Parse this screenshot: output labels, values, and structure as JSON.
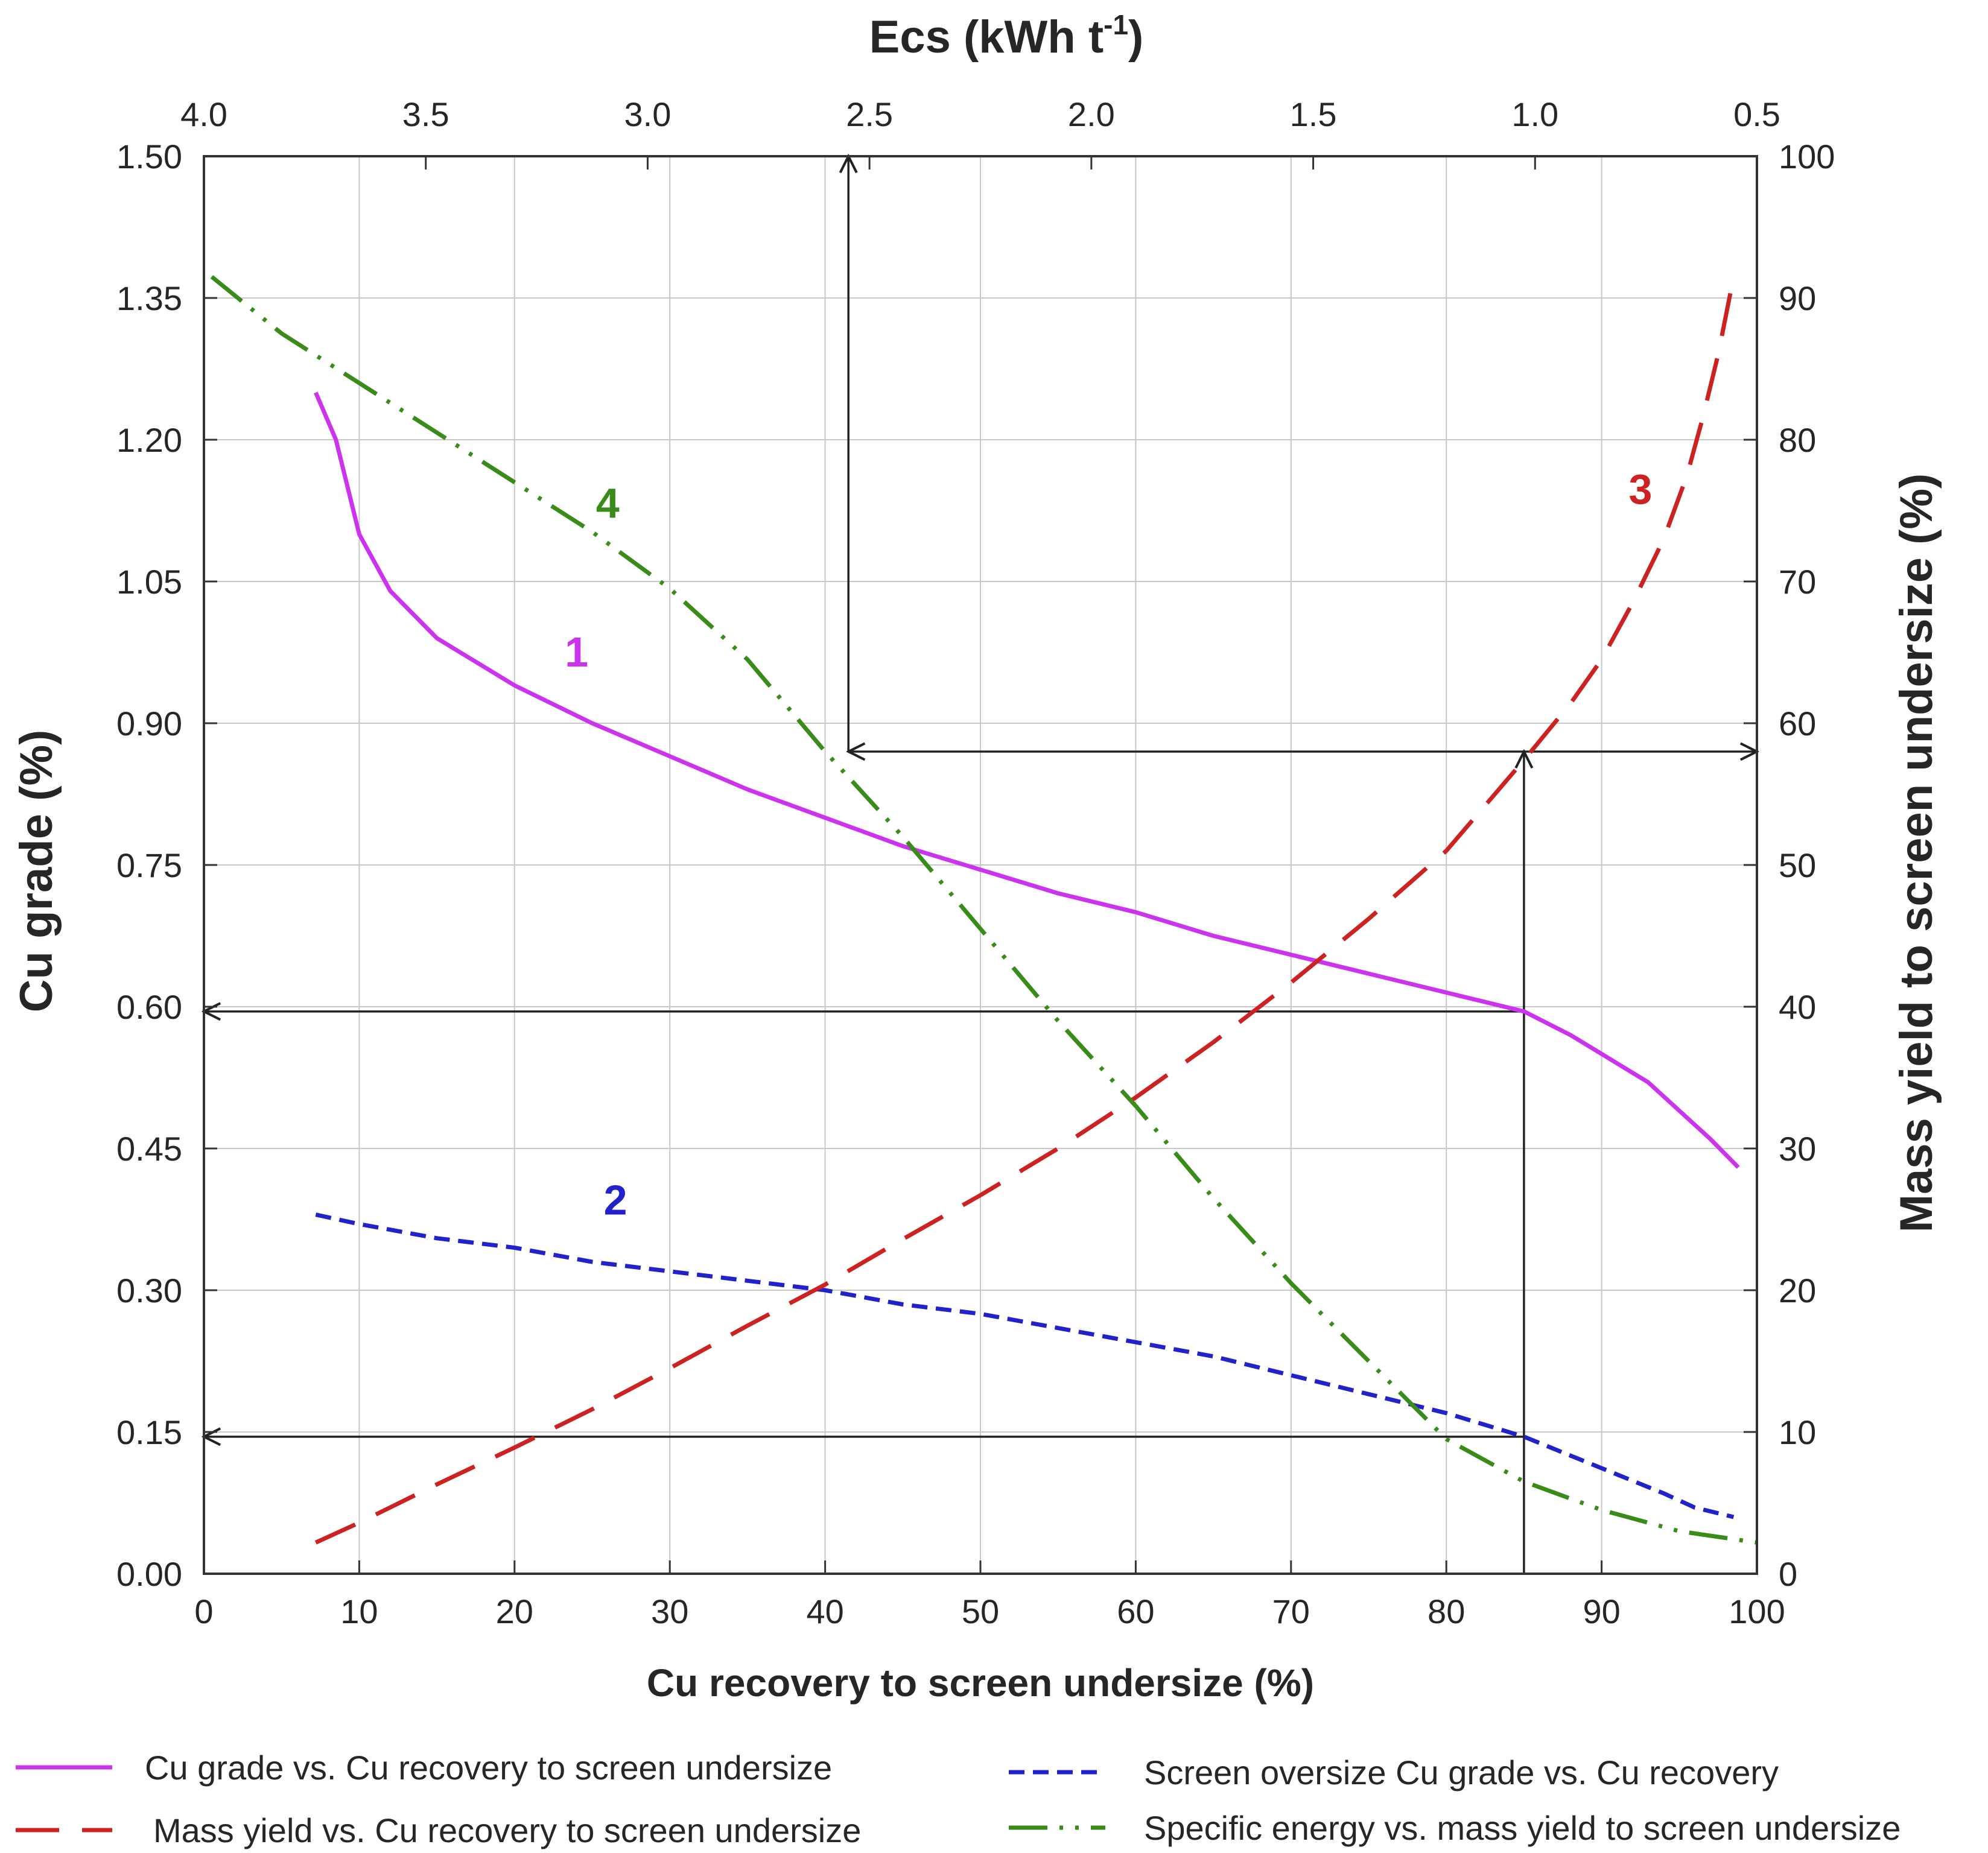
{
  "chart_data": {
    "type": "line",
    "title": "",
    "xlabel": "Cu recovery to screen undersize (%)",
    "xlim": [
      0,
      100
    ],
    "xticks": [
      0,
      10,
      20,
      30,
      40,
      50,
      60,
      70,
      80,
      90,
      100
    ],
    "ylabel_left": "Cu grade (%)",
    "ylim_left": [
      0,
      1.5
    ],
    "yticks_left": [
      "0.00",
      "0.15",
      "0.30",
      "0.45",
      "0.60",
      "0.75",
      "0.90",
      "1.05",
      "1.20",
      "1.35",
      "1.50"
    ],
    "ylabel_right": "Mass yield to screen undersize (%)",
    "ylim_right": [
      0,
      100
    ],
    "yticks_right": [
      0,
      10,
      20,
      30,
      40,
      50,
      60,
      70,
      80,
      90,
      100
    ],
    "x2label_main": "Ecs (kWh t",
    "x2label_sup": "-1",
    "x2label_end": ")",
    "x2lim": [
      4.0,
      0.5
    ],
    "x2ticks": [
      "4.0",
      "3.5",
      "3.0",
      "2.5",
      "2.0",
      "1.5",
      "1.0",
      "0.5"
    ],
    "grid": true,
    "series": [
      {
        "id": "1",
        "name": "Cu grade vs. Cu recovery to screen undersize",
        "label": "1",
        "axis": "left",
        "color": "#cc33ee",
        "style": "solid",
        "label_at": {
          "x": 24,
          "y": 0.96
        },
        "points": [
          [
            7.2,
            1.25
          ],
          [
            8.5,
            1.2
          ],
          [
            10,
            1.1
          ],
          [
            12,
            1.04
          ],
          [
            15,
            0.99
          ],
          [
            20,
            0.94
          ],
          [
            25,
            0.9
          ],
          [
            30,
            0.865
          ],
          [
            35,
            0.83
          ],
          [
            40,
            0.8
          ],
          [
            45,
            0.77
          ],
          [
            50,
            0.745
          ],
          [
            55,
            0.72
          ],
          [
            60,
            0.7
          ],
          [
            65,
            0.675
          ],
          [
            70,
            0.655
          ],
          [
            75,
            0.635
          ],
          [
            80,
            0.615
          ],
          [
            85,
            0.595
          ],
          [
            88,
            0.57
          ],
          [
            90,
            0.55
          ],
          [
            93,
            0.52
          ],
          [
            95,
            0.49
          ],
          [
            97,
            0.46
          ],
          [
            98.8,
            0.43
          ]
        ]
      },
      {
        "id": "2",
        "name": "Screen oversize Cu grade vs. Cu recovery",
        "label": "2",
        "axis": "left",
        "color": "#2222cc",
        "style": "short-dash",
        "label_at": {
          "x": 26.5,
          "y": 0.38
        },
        "points": [
          [
            7.2,
            0.38
          ],
          [
            10,
            0.37
          ],
          [
            15,
            0.355
          ],
          [
            20,
            0.345
          ],
          [
            25,
            0.33
          ],
          [
            30,
            0.32
          ],
          [
            35,
            0.31
          ],
          [
            40,
            0.3
          ],
          [
            45,
            0.285
          ],
          [
            50,
            0.275
          ],
          [
            55,
            0.26
          ],
          [
            60,
            0.245
          ],
          [
            65,
            0.23
          ],
          [
            70,
            0.21
          ],
          [
            75,
            0.19
          ],
          [
            80,
            0.17
          ],
          [
            85,
            0.145
          ],
          [
            88,
            0.125
          ],
          [
            91,
            0.105
          ],
          [
            94,
            0.085
          ],
          [
            96,
            0.07
          ],
          [
            98.5,
            0.06
          ]
        ]
      },
      {
        "id": "3",
        "name": "Mass yield vs. Cu recovery to screen undersize",
        "label": "3",
        "axis": "right",
        "color": "#cc2222",
        "style": "long-dash",
        "label_at": {
          "x": 92.5,
          "y": 75.5
        },
        "points": [
          [
            7.2,
            2.2
          ],
          [
            10,
            3.6
          ],
          [
            15,
            6.3
          ],
          [
            20,
            8.9
          ],
          [
            25,
            11.6
          ],
          [
            30,
            14.5
          ],
          [
            35,
            17.5
          ],
          [
            40,
            20.4
          ],
          [
            45,
            23.6
          ],
          [
            50,
            26.7
          ],
          [
            55,
            30
          ],
          [
            60,
            33.6
          ],
          [
            65,
            37.5
          ],
          [
            70,
            41.7
          ],
          [
            75,
            46.2
          ],
          [
            80,
            51
          ],
          [
            85,
            57.4
          ],
          [
            88,
            61.4
          ],
          [
            90,
            64.5
          ],
          [
            92,
            68.5
          ],
          [
            94,
            73
          ],
          [
            95.5,
            77.5
          ],
          [
            96.5,
            81.5
          ],
          [
            97.5,
            86
          ],
          [
            98.5,
            91.5
          ]
        ]
      },
      {
        "id": "4",
        "name": "Specific energy vs. mass yield to screen undersize",
        "label": "4",
        "axis": "right",
        "color": "#3a8c1a",
        "style": "dash-dot-dot",
        "label_at": {
          "x": 26,
          "y": 74.5
        },
        "points": [
          [
            0.5,
            91.5
          ],
          [
            5,
            87.5
          ],
          [
            10,
            84
          ],
          [
            15,
            80.5
          ],
          [
            20,
            77
          ],
          [
            25,
            73.5
          ],
          [
            30,
            69.5
          ],
          [
            35,
            64.5
          ],
          [
            40,
            58
          ],
          [
            45,
            52
          ],
          [
            50,
            45.5
          ],
          [
            55,
            39
          ],
          [
            60,
            33
          ],
          [
            65,
            26.5
          ],
          [
            70,
            20.5
          ],
          [
            75,
            15
          ],
          [
            80,
            9.5
          ],
          [
            85,
            6.5
          ],
          [
            90,
            4.5
          ],
          [
            95,
            3
          ],
          [
            100,
            2.2
          ]
        ]
      }
    ],
    "annotation_arrows": [
      {
        "id": "horizontal-grade-0.60",
        "from": [
          85,
          0.595
        ],
        "to": [
          0,
          0.595
        ]
      },
      {
        "id": "horizontal-grade-0.15",
        "from": [
          85,
          0.145
        ],
        "to": [
          0,
          0.145
        ]
      },
      {
        "id": "vertical-recovery-85",
        "from": [
          85,
          0.0
        ],
        "to": [
          85,
          0.87
        ]
      },
      {
        "id": "horizontal-yield-58",
        "from": [
          41.5,
          0.87
        ],
        "to": [
          100,
          0.87
        ],
        "double": true
      },
      {
        "id": "vertical-up-ecs",
        "from": [
          41.5,
          0.87
        ],
        "to": [
          41.5,
          1.5
        ]
      }
    ]
  },
  "legend": {
    "items": [
      {
        "series": "1",
        "label": "Cu grade vs. Cu recovery to screen undersize"
      },
      {
        "series": "3",
        "label": "Mass yield vs. Cu recovery to screen undersize"
      },
      {
        "series": "2",
        "label": "Screen oversize Cu grade vs. Cu recovery"
      },
      {
        "series": "4",
        "label": "Specific energy vs. mass yield to screen undersize"
      }
    ]
  }
}
